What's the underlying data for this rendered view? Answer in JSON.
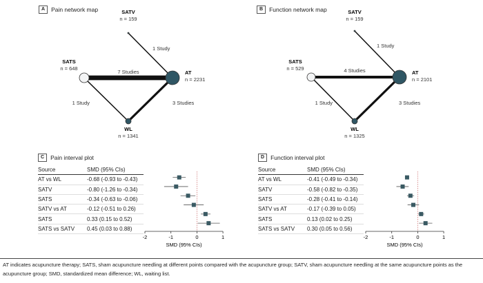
{
  "panels": {
    "A": {
      "letter": "A",
      "title": "Pain network map"
    },
    "B": {
      "letter": "B",
      "title": "Function network map"
    },
    "C": {
      "letter": "C",
      "title": "Pain interval plot"
    },
    "D": {
      "letter": "D",
      "title": "Function interval plot"
    }
  },
  "chart_data": [
    {
      "type": "network",
      "title": "Pain network map",
      "nodes": [
        {
          "id": "SATV",
          "n": "n = 159"
        },
        {
          "id": "SATS",
          "n": "n = 648"
        },
        {
          "id": "AT",
          "n": "n = 2231"
        },
        {
          "id": "WL",
          "n": "n = 1341"
        }
      ],
      "edges": [
        {
          "from": "SATV",
          "to": "AT",
          "label": "1 Study",
          "studies": 1
        },
        {
          "from": "SATS",
          "to": "AT",
          "label": "7 Studies",
          "studies": 7
        },
        {
          "from": "SATS",
          "to": "WL",
          "label": "1 Study",
          "studies": 1
        },
        {
          "from": "WL",
          "to": "AT",
          "label": "3 Studies",
          "studies": 3
        }
      ]
    },
    {
      "type": "network",
      "title": "Function network map",
      "nodes": [
        {
          "id": "SATV",
          "n": "n = 159"
        },
        {
          "id": "SATS",
          "n": "n = 529"
        },
        {
          "id": "AT",
          "n": "n = 2101"
        },
        {
          "id": "WL",
          "n": "n = 1325"
        }
      ],
      "edges": [
        {
          "from": "SATV",
          "to": "AT",
          "label": "1 Study",
          "studies": 1
        },
        {
          "from": "SATS",
          "to": "AT",
          "label": "4 Studies",
          "studies": 4
        },
        {
          "from": "SATS",
          "to": "WL",
          "label": "1 Study",
          "studies": 1
        },
        {
          "from": "WL",
          "to": "AT",
          "label": "3 Studies",
          "studies": 3
        }
      ]
    },
    {
      "type": "forest",
      "title": "Pain interval plot",
      "headers": [
        "Source",
        "SMD (95% CIs)"
      ],
      "xlabel": "SMD (95% CIs)",
      "xlim": [
        -2,
        1
      ],
      "xticks": [
        "-2",
        "-1",
        "0",
        "1"
      ],
      "rows": [
        {
          "source": "AT vs WL",
          "text": "-0.68 (-0.93 to -0.43)",
          "est": -0.68,
          "lo": -0.93,
          "hi": -0.43
        },
        {
          "source": "SATV",
          "text": "-0.80 (-1.26 to -0.34)",
          "est": -0.8,
          "lo": -1.26,
          "hi": -0.34
        },
        {
          "source": "SATS",
          "text": "-0.34 (-0.63 to -0.06)",
          "est": -0.34,
          "lo": -0.63,
          "hi": -0.06
        },
        {
          "source": "SATV vs AT",
          "text": "-0.12 (-0.51 to 0.26)",
          "est": -0.12,
          "lo": -0.51,
          "hi": 0.26
        },
        {
          "source": "SATS",
          "text": "0.33 (0.15 to 0.52)",
          "est": 0.33,
          "lo": 0.15,
          "hi": 0.52
        },
        {
          "source": "SATS vs SATV",
          "text": "0.45 (0.03 to 0.88)",
          "est": 0.45,
          "lo": 0.03,
          "hi": 0.88
        }
      ]
    },
    {
      "type": "forest",
      "title": "Function interval plot",
      "headers": [
        "Source",
        "SMD (95% CIs)"
      ],
      "xlabel": "SMD (95% CIs)",
      "xlim": [
        -2,
        1
      ],
      "xticks": [
        "-2",
        "-1",
        "0",
        "1"
      ],
      "rows": [
        {
          "source": "AT vs WL",
          "text": "-0.41 (-0.49 to -0.34)",
          "est": -0.41,
          "lo": -0.49,
          "hi": -0.34
        },
        {
          "source": "SATV",
          "text": "-0.58 (-0.82 to -0.35)",
          "est": -0.58,
          "lo": -0.82,
          "hi": -0.35
        },
        {
          "source": "SATS",
          "text": "-0.28 (-0.41 to -0.14)",
          "est": -0.28,
          "lo": -0.41,
          "hi": -0.14
        },
        {
          "source": "SATV vs AT",
          "text": "-0.17 (-0.39 to 0.05)",
          "est": -0.17,
          "lo": -0.39,
          "hi": 0.05
        },
        {
          "source": "SATS",
          "text": "0.13 (0.02 to 0.25)",
          "est": 0.13,
          "lo": 0.02,
          "hi": 0.25
        },
        {
          "source": "SATS vs SATV",
          "text": "0.30 (0.05 to 0.56)",
          "est": 0.3,
          "lo": 0.05,
          "hi": 0.56
        }
      ]
    }
  ],
  "footnote": "AT indicates acupuncture therapy; SATS, sham acupuncture needling at different points compared with the acupuncture group; SATV, sham acupuncture needling at the same acupuncture points as the acupuncture group; SMD, standardized mean difference; WL, waiting list.",
  "colors": {
    "node": "#2f5664",
    "marker": "#3a5a63"
  }
}
